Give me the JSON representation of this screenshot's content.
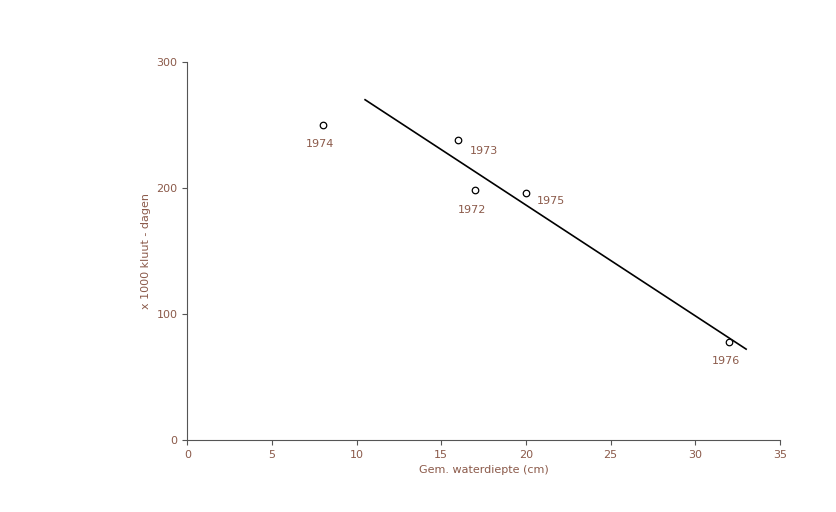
{
  "chart_data": {
    "type": "scatter",
    "x_label": "Gem. waterdiepte (cm)",
    "y_label": "x 1000 kluut - dagen",
    "xlim": [
      0,
      35
    ],
    "xticks": [
      0,
      5,
      10,
      15,
      20,
      25,
      30,
      35
    ],
    "ylim": [
      0,
      300
    ],
    "yticks": [
      0,
      100,
      200,
      300
    ],
    "grid": false,
    "series": [
      {
        "type": "scatter",
        "marker": "o",
        "color": "#000000",
        "x": [
          8,
          16,
          17,
          20,
          32
        ],
        "values": [
          250,
          238,
          198,
          196,
          78
        ],
        "labels": [
          "1974",
          "1973",
          "1972",
          "1975",
          "1976"
        ]
      },
      {
        "type": "line",
        "line_style": "solid",
        "color": "#000000",
        "x": [
          10.5,
          33
        ],
        "values": [
          270,
          72
        ]
      }
    ]
  }
}
